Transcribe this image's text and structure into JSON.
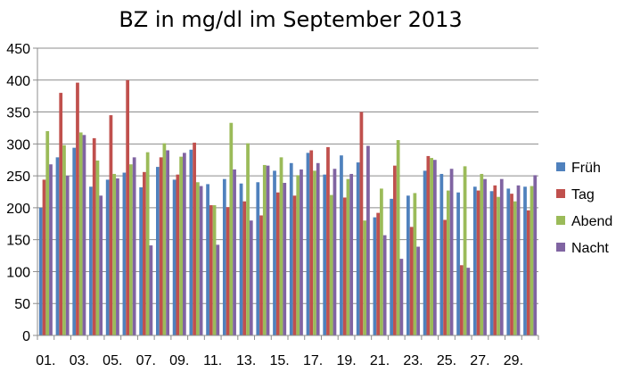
{
  "chart_data": {
    "type": "bar",
    "title": "BZ in mg/dl im September 2013",
    "xlabel": "",
    "ylabel": "",
    "ylim": [
      0,
      450
    ],
    "yticks": [
      "0",
      "50",
      "100",
      "150",
      "200",
      "250",
      "300",
      "350",
      "400",
      "450"
    ],
    "grid": true,
    "legend_position": "right",
    "categories": [
      "01.",
      "02.",
      "03.",
      "04.",
      "05.",
      "06.",
      "07.",
      "08.",
      "09.",
      "10.",
      "11.",
      "12.",
      "13.",
      "14.",
      "15.",
      "16.",
      "17.",
      "18.",
      "19.",
      "20.",
      "21.",
      "22.",
      "23.",
      "24.",
      "25.",
      "26.",
      "27.",
      "28.",
      "29.",
      "30."
    ],
    "xtick_labels": [
      "01.",
      "",
      "03.",
      "",
      "05.",
      "",
      "07.",
      "",
      "09.",
      "",
      "11.",
      "",
      "13.",
      "",
      "15.",
      "",
      "17.",
      "",
      "19.",
      "",
      "21.",
      "",
      "23.",
      "",
      "25.",
      "",
      "27.",
      "",
      "29.",
      ""
    ],
    "series": [
      {
        "name": "Früh",
        "color": "#4F81BD",
        "values": [
          200,
          279,
          294,
          233,
          244,
          255,
          232,
          264,
          244,
          291,
          237,
          245,
          238,
          240,
          258,
          270,
          286,
          252,
          282,
          271,
          185,
          214,
          219,
          258,
          253,
          224,
          233,
          226,
          230,
          233
        ]
      },
      {
        "name": "Tag",
        "color": "#C0504D",
        "values": [
          244,
          380,
          396,
          309,
          345,
          400,
          256,
          279,
          252,
          302,
          204,
          201,
          210,
          188,
          224,
          219,
          290,
          295,
          216,
          350,
          192,
          266,
          170,
          281,
          181,
          110,
          227,
          235,
          222,
          196
        ]
      },
      {
        "name": "Abend",
        "color": "#9BBB59",
        "values": [
          320,
          298,
          318,
          274,
          253,
          268,
          287,
          301,
          280,
          240,
          204,
          333,
          301,
          267,
          279,
          251,
          258,
          220,
          245,
          180,
          230,
          306,
          223,
          278,
          227,
          265,
          253,
          217,
          210,
          234
        ]
      },
      {
        "name": "Nacht",
        "color": "#8064A2",
        "values": [
          268,
          250,
          314,
          219,
          246,
          279,
          141,
          290,
          286,
          234,
          142,
          260,
          180,
          266,
          239,
          260,
          270,
          261,
          253,
          297,
          157,
          120,
          139,
          275,
          261,
          106,
          245,
          245,
          235,
          251
        ]
      }
    ]
  }
}
